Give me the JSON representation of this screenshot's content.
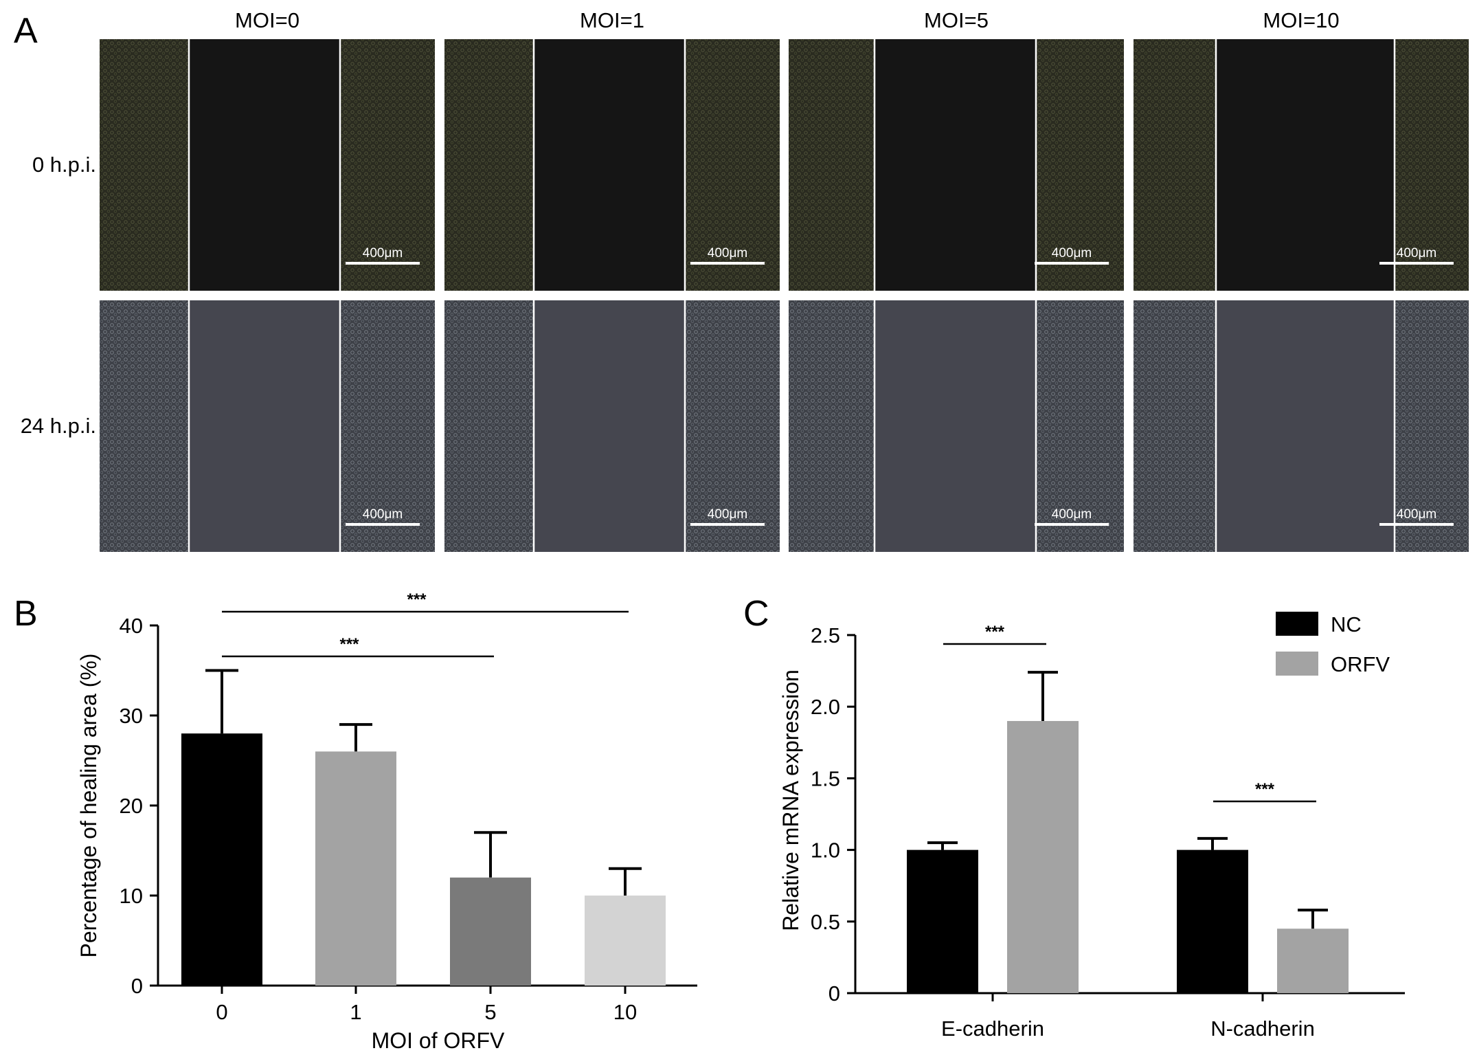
{
  "panels": {
    "a": "A",
    "b": "B",
    "c": "C"
  },
  "micrographs": {
    "columns": [
      "MOI=0",
      "MOI=1",
      "MOI=5",
      "MOI=10"
    ],
    "rows": [
      "0 h.p.i.",
      "24 h.p.i."
    ],
    "scale_bar": "400μm"
  },
  "chart_data": [
    {
      "type": "bar",
      "panel": "B",
      "categories": [
        "0",
        "1",
        "5",
        "10"
      ],
      "values": [
        28,
        26,
        12,
        10
      ],
      "errors": [
        7,
        3,
        5,
        3
      ],
      "bar_colors": [
        "#000000",
        "#a3a3a3",
        "#7a7a7a",
        "#d3d3d3"
      ],
      "xlabel": "MOI of ORFV",
      "ylabel": "Percentage of healing area (%)",
      "ylim": [
        0,
        40
      ],
      "yticks": [
        "0",
        "10",
        "20",
        "30",
        "40"
      ],
      "significance": [
        {
          "from": "0",
          "to": "5",
          "label": "***"
        },
        {
          "from": "0",
          "to": "10",
          "label": "***"
        }
      ]
    },
    {
      "type": "bar",
      "panel": "C",
      "categories": [
        "E-cadherin",
        "N-cadherin"
      ],
      "series": [
        {
          "name": "NC",
          "color": "#000000",
          "values": [
            1.0,
            1.0
          ],
          "errors": [
            0.05,
            0.08
          ]
        },
        {
          "name": "ORFV",
          "color": "#a3a3a3",
          "values": [
            1.9,
            0.45
          ],
          "errors": [
            0.34,
            0.13
          ]
        }
      ],
      "ylabel": "Relative mRNA expression",
      "ylim": [
        0,
        2.5
      ],
      "yticks": [
        "0",
        "0.5",
        "1.0",
        "1.5",
        "2.0",
        "2.5"
      ],
      "legend": "top-right",
      "significance": [
        {
          "category": "E-cadherin",
          "label": "***"
        },
        {
          "category": "N-cadherin",
          "label": "***"
        }
      ]
    }
  ]
}
